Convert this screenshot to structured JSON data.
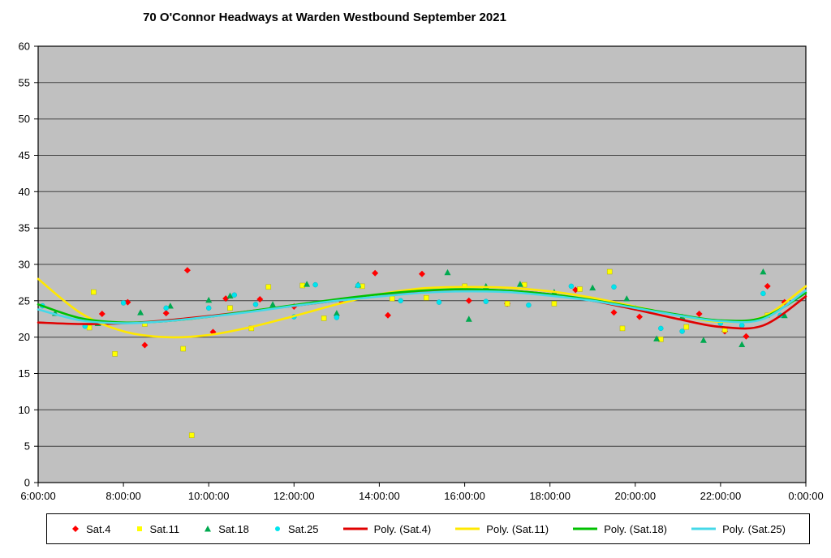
{
  "title": "70 O'Connor Headways at Warden Westbound September 2021",
  "colors": {
    "plot_background": "#C0C0C0",
    "gridline": "#404040",
    "axis": "#000000",
    "sat4": "#FF0000",
    "sat11": "#FFFF00",
    "sat18": "#00A94F",
    "poly_sat4": "#E00000",
    "poly_sat11": "#FFE800",
    "poly_sat18": "#00C000",
    "sat25": "#00E5EE",
    "poly_sat25": "#45D8E8"
  },
  "chart_data": {
    "type": "scatter",
    "title": "70 O'Connor Headways at Warden Westbound September 2021",
    "xlabel": "",
    "ylabel": "",
    "grid": "horizontal",
    "legend_position": "bottom",
    "x_range": [
      6,
      24
    ],
    "ylim": [
      0,
      60
    ],
    "y_ticks": [
      0,
      5,
      10,
      15,
      20,
      25,
      30,
      35,
      40,
      45,
      50,
      55,
      60
    ],
    "x_ticks": [
      {
        "value": 6,
        "label": "6:00:00"
      },
      {
        "value": 8,
        "label": "8:00:00"
      },
      {
        "value": 10,
        "label": "10:00:00"
      },
      {
        "value": 12,
        "label": "12:00:00"
      },
      {
        "value": 14,
        "label": "14:00:00"
      },
      {
        "value": 16,
        "label": "16:00:00"
      },
      {
        "value": 18,
        "label": "18:00:00"
      },
      {
        "value": 20,
        "label": "20:00:00"
      },
      {
        "value": 22,
        "label": "22:00:00"
      },
      {
        "value": 24,
        "label": "0:00:00"
      }
    ],
    "series": [
      {
        "name": "Sat.4",
        "marker": "diamond",
        "color": "#FF0000",
        "points": [
          [
            7.5,
            23.2
          ],
          [
            8.1,
            24.8
          ],
          [
            8.5,
            18.9
          ],
          [
            9.0,
            23.3
          ],
          [
            9.5,
            29.2
          ],
          [
            10.1,
            20.7
          ],
          [
            10.4,
            25.3
          ],
          [
            11.2,
            25.2
          ],
          [
            12.0,
            24.2
          ],
          [
            13.1,
            25.0
          ],
          [
            13.9,
            28.8
          ],
          [
            14.2,
            23.0
          ],
          [
            15.0,
            28.7
          ],
          [
            16.1,
            25.0
          ],
          [
            17.0,
            24.6
          ],
          [
            18.6,
            26.5
          ],
          [
            19.5,
            23.4
          ],
          [
            20.1,
            22.8
          ],
          [
            21.5,
            23.2
          ],
          [
            22.1,
            20.8
          ],
          [
            22.6,
            20.1
          ],
          [
            23.1,
            27.0
          ],
          [
            23.5,
            24.8
          ]
        ]
      },
      {
        "name": "Sat.11",
        "marker": "square",
        "color": "#FFFF00",
        "points": [
          [
            7.2,
            21.3
          ],
          [
            7.3,
            26.2
          ],
          [
            7.8,
            17.7
          ],
          [
            8.5,
            21.8
          ],
          [
            9.4,
            18.4
          ],
          [
            9.6,
            6.5
          ],
          [
            10.5,
            24.0
          ],
          [
            11.0,
            21.2
          ],
          [
            11.4,
            26.9
          ],
          [
            12.2,
            27.1
          ],
          [
            12.7,
            22.6
          ],
          [
            13.6,
            27.0
          ],
          [
            14.3,
            25.3
          ],
          [
            15.1,
            25.4
          ],
          [
            16.0,
            27.0
          ],
          [
            17.0,
            24.6
          ],
          [
            17.4,
            27.2
          ],
          [
            18.1,
            24.6
          ],
          [
            18.7,
            26.6
          ],
          [
            19.4,
            29.0
          ],
          [
            19.7,
            21.2
          ],
          [
            20.6,
            19.7
          ],
          [
            21.2,
            21.4
          ],
          [
            22.1,
            21.0
          ],
          [
            23.1,
            23.0
          ]
        ]
      },
      {
        "name": "Sat.18",
        "marker": "triangle",
        "color": "#00A94F",
        "points": [
          [
            6.4,
            23.3
          ],
          [
            7.4,
            21.9
          ],
          [
            8.4,
            23.4
          ],
          [
            9.1,
            24.3
          ],
          [
            10.0,
            25.1
          ],
          [
            10.5,
            25.7
          ],
          [
            11.5,
            24.5
          ],
          [
            12.3,
            27.3
          ],
          [
            13.0,
            23.3
          ],
          [
            13.5,
            27.2
          ],
          [
            15.6,
            28.9
          ],
          [
            16.1,
            22.5
          ],
          [
            16.5,
            27.0
          ],
          [
            17.3,
            27.3
          ],
          [
            18.1,
            26.2
          ],
          [
            19.0,
            26.8
          ],
          [
            19.8,
            25.3
          ],
          [
            20.5,
            19.8
          ],
          [
            21.1,
            22.8
          ],
          [
            21.6,
            19.6
          ],
          [
            22.5,
            19.0
          ],
          [
            23.0,
            29.0
          ],
          [
            23.5,
            23.0
          ]
        ]
      },
      {
        "name": "Sat.25",
        "marker": "circle",
        "color": "#00E5EE",
        "points": [
          [
            6.1,
            24.3
          ],
          [
            7.1,
            21.5
          ],
          [
            8.0,
            24.7
          ],
          [
            9.0,
            24.0
          ],
          [
            10.0,
            24.0
          ],
          [
            10.6,
            25.8
          ],
          [
            11.1,
            24.5
          ],
          [
            12.0,
            22.8
          ],
          [
            12.5,
            27.2
          ],
          [
            13.0,
            22.7
          ],
          [
            13.5,
            27.1
          ],
          [
            14.5,
            25.0
          ],
          [
            15.4,
            24.8
          ],
          [
            16.5,
            24.9
          ],
          [
            17.5,
            24.4
          ],
          [
            18.5,
            27.0
          ],
          [
            19.5,
            26.9
          ],
          [
            20.0,
            24.0
          ],
          [
            20.6,
            21.2
          ],
          [
            21.1,
            20.8
          ],
          [
            22.0,
            21.9
          ],
          [
            22.5,
            21.6
          ],
          [
            23.0,
            26.0
          ],
          [
            23.4,
            23.0
          ]
        ]
      }
    ],
    "trendlines": [
      {
        "name": "Poly. (Sat.4)",
        "color": "#E00000",
        "points": [
          [
            6,
            22.0
          ],
          [
            7,
            21.8
          ],
          [
            8,
            21.9
          ],
          [
            9,
            22.3
          ],
          [
            10,
            22.9
          ],
          [
            11,
            23.6
          ],
          [
            12,
            24.3
          ],
          [
            13,
            25.0
          ],
          [
            14,
            25.7
          ],
          [
            15,
            26.2
          ],
          [
            16,
            26.5
          ],
          [
            17,
            26.4
          ],
          [
            18,
            25.9
          ],
          [
            19,
            25.0
          ],
          [
            20,
            23.8
          ],
          [
            21,
            22.5
          ],
          [
            22,
            21.4
          ],
          [
            23,
            21.6
          ],
          [
            24,
            25.6
          ]
        ]
      },
      {
        "name": "Poly. (Sat.11)",
        "color": "#FFE800",
        "points": [
          [
            6,
            28.0
          ],
          [
            7,
            23.3
          ],
          [
            8,
            20.8
          ],
          [
            9,
            20.0
          ],
          [
            10,
            20.3
          ],
          [
            11,
            21.4
          ],
          [
            12,
            22.9
          ],
          [
            13,
            24.5
          ],
          [
            14,
            25.9
          ],
          [
            15,
            26.7
          ],
          [
            16,
            26.9
          ],
          [
            17,
            26.8
          ],
          [
            18,
            26.3
          ],
          [
            19,
            25.4
          ],
          [
            20,
            24.2
          ],
          [
            21,
            23.0
          ],
          [
            22,
            22.1
          ],
          [
            23,
            22.8
          ],
          [
            24,
            27.0
          ]
        ]
      },
      {
        "name": "Poly. (Sat.18)",
        "color": "#00C000",
        "points": [
          [
            6,
            24.5
          ],
          [
            7,
            22.6
          ],
          [
            8,
            22.0
          ],
          [
            9,
            22.2
          ],
          [
            10,
            22.8
          ],
          [
            11,
            23.6
          ],
          [
            12,
            24.4
          ],
          [
            13,
            25.2
          ],
          [
            14,
            25.9
          ],
          [
            15,
            26.4
          ],
          [
            16,
            26.6
          ],
          [
            17,
            26.4
          ],
          [
            18,
            25.9
          ],
          [
            19,
            25.1
          ],
          [
            20,
            24.1
          ],
          [
            21,
            23.1
          ],
          [
            22,
            22.3
          ],
          [
            23,
            22.7
          ],
          [
            24,
            26.1
          ]
        ]
      },
      {
        "name": "Poly. (Sat.25)",
        "color": "#45D8E8",
        "points": [
          [
            6,
            23.8
          ],
          [
            7,
            22.3
          ],
          [
            8,
            21.9
          ],
          [
            9,
            22.2
          ],
          [
            10,
            22.8
          ],
          [
            11,
            23.5
          ],
          [
            12,
            24.3
          ],
          [
            13,
            25.0
          ],
          [
            14,
            25.6
          ],
          [
            15,
            26.1
          ],
          [
            16,
            26.3
          ],
          [
            17,
            26.2
          ],
          [
            18,
            25.7
          ],
          [
            19,
            25.0
          ],
          [
            20,
            24.0
          ],
          [
            21,
            23.0
          ],
          [
            22,
            22.2
          ],
          [
            23,
            22.5
          ],
          [
            24,
            26.4
          ]
        ]
      }
    ]
  },
  "legend": {
    "entries": [
      {
        "label": "Sat.4",
        "kind": "marker",
        "marker": "diamond",
        "color": "#FF0000"
      },
      {
        "label": "Sat.11",
        "kind": "marker",
        "marker": "square",
        "color": "#FFFF00"
      },
      {
        "label": "Sat.18",
        "kind": "marker",
        "marker": "triangle",
        "color": "#00A94F"
      },
      {
        "label": "Sat.25",
        "kind": "marker",
        "marker": "circle",
        "color": "#00E5EE"
      },
      {
        "label": "Poly. (Sat.4)",
        "kind": "line",
        "color": "#E00000"
      },
      {
        "label": "Poly. (Sat.11)",
        "kind": "line",
        "color": "#FFE800"
      },
      {
        "label": "Poly. (Sat.18)",
        "kind": "line",
        "color": "#00C000"
      },
      {
        "label": "Poly. (Sat.25)",
        "kind": "line",
        "color": "#45D8E8"
      }
    ]
  }
}
